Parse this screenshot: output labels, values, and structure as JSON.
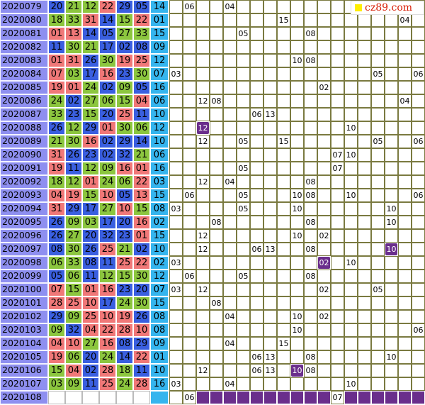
{
  "chart_data": {
    "type": "table",
    "watermark": "cz89.com",
    "colors": {
      "period_bg": "#8e8ff0",
      "red_ball_bg": "#f07878",
      "blue_group_bg": "#3a5fe0",
      "green_group_bg": "#8cc63f",
      "special_ball_bg": "#35b5ee",
      "highlight_bg": "#6a2e8c",
      "grid_line": "#7a7a40"
    },
    "rows": [
      {
        "period": "2020079",
        "balls": [
          "20",
          "21",
          "12",
          "22",
          "29",
          "05"
        ],
        "special": "14",
        "tail": {
          "1": "06",
          "4": "04"
        }
      },
      {
        "period": "2020080",
        "balls": [
          "18",
          "33",
          "31",
          "14",
          "15",
          "22"
        ],
        "special": "01",
        "tail": {
          "8": "15",
          "17": "04"
        }
      },
      {
        "period": "2020081",
        "balls": [
          "01",
          "13",
          "14",
          "05",
          "27",
          "33"
        ],
        "special": "15",
        "tail": {
          "5": "05",
          "10": "08"
        }
      },
      {
        "period": "2020082",
        "balls": [
          "11",
          "30",
          "21",
          "17",
          "02",
          "08"
        ],
        "special": "09",
        "tail": {}
      },
      {
        "period": "2020083",
        "balls": [
          "01",
          "31",
          "26",
          "30",
          "19",
          "25"
        ],
        "special": "12",
        "tail": {
          "9": "10",
          "10": "08"
        }
      },
      {
        "period": "2020084",
        "balls": [
          "07",
          "03",
          "17",
          "16",
          "23",
          "30"
        ],
        "special": "07",
        "tail": {
          "0": "03",
          "15": "05",
          "18": "06"
        }
      },
      {
        "period": "2020085",
        "balls": [
          "19",
          "01",
          "24",
          "02",
          "09",
          "05"
        ],
        "special": "16",
        "tail": {
          "11": "02"
        }
      },
      {
        "period": "2020086",
        "balls": [
          "24",
          "02",
          "27",
          "06",
          "15",
          "04"
        ],
        "special": "06",
        "tail": {
          "2": "12",
          "3": "08",
          "17": "04"
        }
      },
      {
        "period": "2020087",
        "balls": [
          "33",
          "23",
          "15",
          "20",
          "25",
          "11"
        ],
        "special": "10",
        "tail": {
          "6": "06",
          "7": "13"
        }
      },
      {
        "period": "2020088",
        "balls": [
          "26",
          "12",
          "29",
          "01",
          "30",
          "06"
        ],
        "special": "12",
        "tail": {
          "2": "12",
          "13": "10"
        },
        "highlight": [
          "2"
        ]
      },
      {
        "period": "2020089",
        "balls": [
          "21",
          "30",
          "16",
          "02",
          "29",
          "14"
        ],
        "special": "10",
        "tail": {
          "2": "12",
          "5": "05",
          "8": "15",
          "15": "05",
          "18": "06"
        }
      },
      {
        "period": "2020090",
        "balls": [
          "31",
          "26",
          "23",
          "02",
          "32",
          "21"
        ],
        "special": "06",
        "tail": {
          "12": "07",
          "13": "10"
        }
      },
      {
        "period": "2020091",
        "balls": [
          "19",
          "11",
          "12",
          "09",
          "16",
          "01"
        ],
        "special": "16",
        "tail": {
          "5": "05",
          "12": "07"
        }
      },
      {
        "period": "2020092",
        "balls": [
          "18",
          "12",
          "01",
          "24",
          "06",
          "22"
        ],
        "special": "03",
        "tail": {
          "2": "12",
          "4": "04",
          "10": "08"
        }
      },
      {
        "period": "2020093",
        "balls": [
          "04",
          "19",
          "15",
          "10",
          "05",
          "13"
        ],
        "special": "15",
        "tail": {
          "1": "06",
          "5": "05",
          "9": "10",
          "10": "08",
          "13": "10",
          "18": "06"
        }
      },
      {
        "period": "2020094",
        "balls": [
          "31",
          "29",
          "17",
          "27",
          "10",
          "15"
        ],
        "special": "08",
        "tail": {
          "0": "03",
          "5": "05",
          "9": "10",
          "16": "10"
        }
      },
      {
        "period": "2020095",
        "balls": [
          "26",
          "09",
          "03",
          "17",
          "20",
          "16"
        ],
        "special": "02",
        "tail": {
          "3": "08",
          "10": "08",
          "16": "10"
        }
      },
      {
        "period": "2020096",
        "balls": [
          "26",
          "27",
          "20",
          "32",
          "23",
          "01"
        ],
        "special": "15",
        "tail": {
          "2": "12",
          "9": "10",
          "11": "02"
        }
      },
      {
        "period": "2020097",
        "balls": [
          "08",
          "30",
          "26",
          "25",
          "21",
          "02"
        ],
        "special": "10",
        "tail": {
          "2": "12",
          "6": "06",
          "7": "13",
          "10": "08",
          "16": "10"
        },
        "highlight": [
          "16"
        ]
      },
      {
        "period": "2020098",
        "balls": [
          "06",
          "33",
          "08",
          "11",
          "25",
          "22"
        ],
        "special": "02",
        "tail": {
          "0": "03",
          "11": "02",
          "13": "10"
        },
        "highlight": [
          "11"
        ]
      },
      {
        "period": "2020099",
        "balls": [
          "05",
          "06",
          "11",
          "12",
          "15",
          "30"
        ],
        "special": "12",
        "tail": {
          "1": "06",
          "5": "05",
          "10": "08"
        }
      },
      {
        "period": "2020100",
        "balls": [
          "07",
          "15",
          "01",
          "16",
          "23",
          "20"
        ],
        "special": "07",
        "tail": {
          "0": "03",
          "2": "12",
          "11": "02",
          "15": "05"
        }
      },
      {
        "period": "2020101",
        "balls": [
          "28",
          "25",
          "10",
          "17",
          "24",
          "30"
        ],
        "special": "15",
        "tail": {
          "3": "08"
        }
      },
      {
        "period": "2020102",
        "balls": [
          "29",
          "09",
          "25",
          "10",
          "19",
          "26"
        ],
        "special": "08",
        "tail": {
          "4": "04",
          "9": "10",
          "11": "02"
        }
      },
      {
        "period": "2020103",
        "balls": [
          "09",
          "32",
          "04",
          "22",
          "28",
          "10"
        ],
        "special": "08",
        "tail": {
          "9": "10",
          "18": "06"
        }
      },
      {
        "period": "2020104",
        "balls": [
          "04",
          "10",
          "27",
          "16",
          "08",
          "29"
        ],
        "special": "09",
        "tail": {
          "4": "04",
          "8": "15"
        }
      },
      {
        "period": "2020105",
        "balls": [
          "19",
          "06",
          "20",
          "24",
          "14",
          "22"
        ],
        "special": "01",
        "tail": {
          "6": "06",
          "7": "13",
          "10": "08",
          "16": "10"
        }
      },
      {
        "period": "2020106",
        "balls": [
          "15",
          "04",
          "02",
          "28",
          "18",
          "11"
        ],
        "special": "10",
        "tail": {
          "2": "12",
          "6": "06",
          "7": "13",
          "9": "10",
          "10": "08"
        },
        "highlight": [
          "9"
        ]
      },
      {
        "period": "2020107",
        "balls": [
          "03",
          "09",
          "11",
          "25",
          "24",
          "28"
        ],
        "special": "16",
        "tail": {
          "0": "03",
          "4": "04",
          "13": "10"
        }
      },
      {
        "period": "2020108",
        "balls": [
          "",
          "",
          "",
          "",
          "",
          ""
        ],
        "special": "",
        "tail": {
          "1": "06",
          "12": "07"
        },
        "pending": true
      }
    ]
  }
}
